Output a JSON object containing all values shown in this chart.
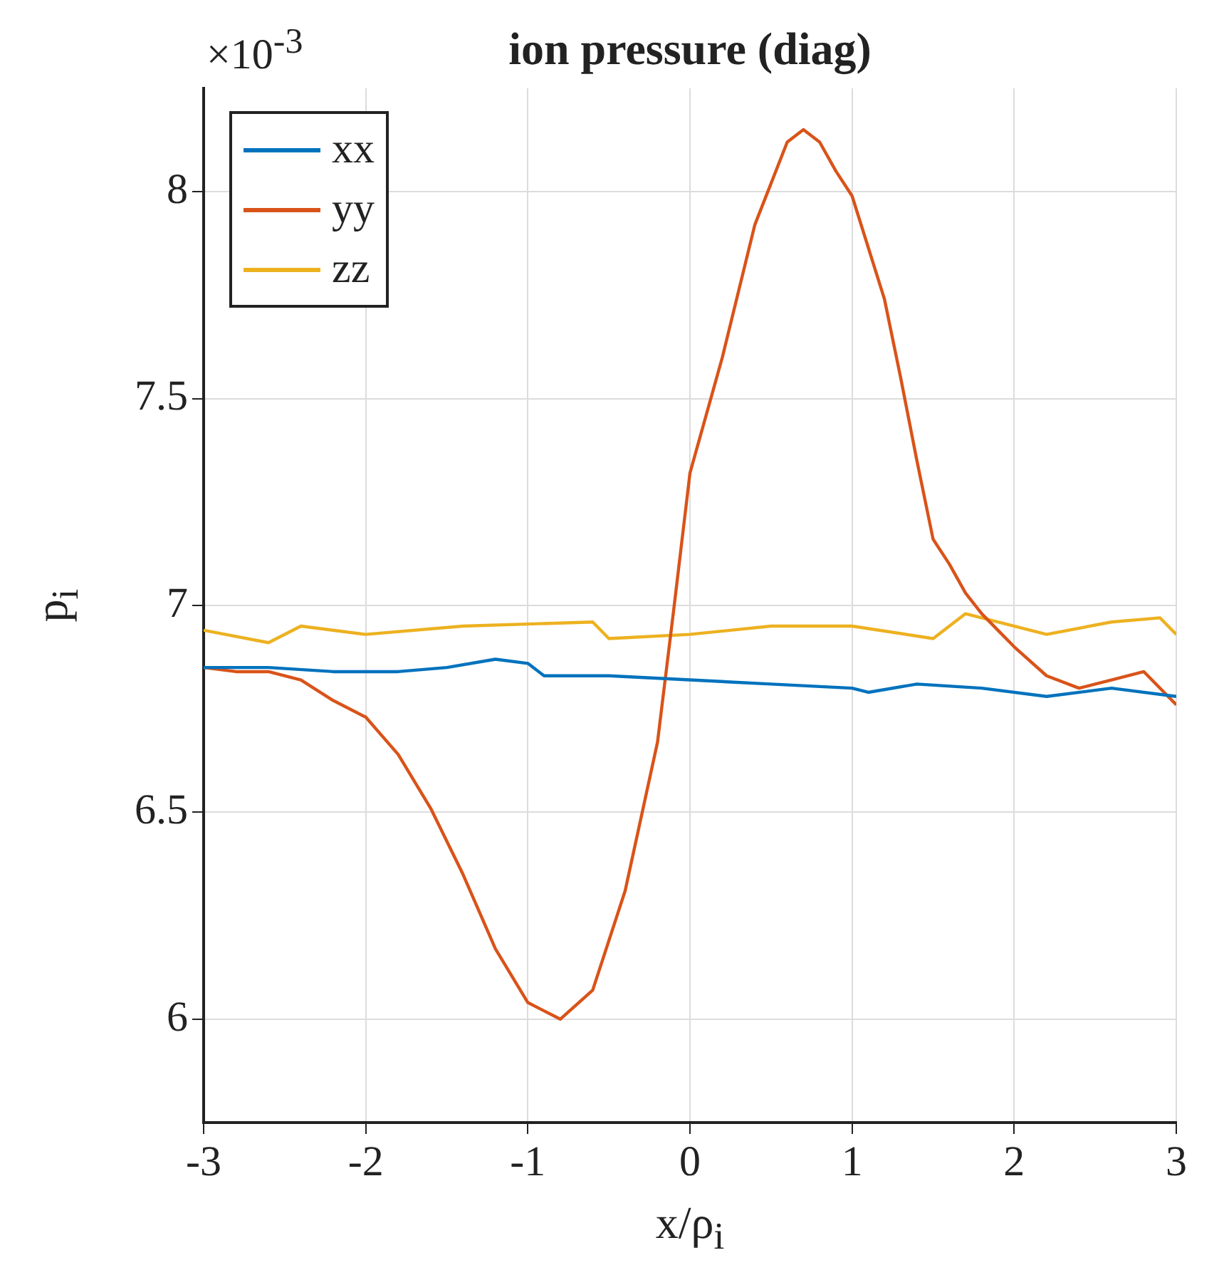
{
  "chart_data": {
    "type": "line",
    "title": "ion pressure (diag)",
    "xlabel": "x/ρ$_{i}$",
    "ylabel": "p$_{i}$",
    "annotations": [
      "×10$^{-3}$"
    ],
    "xlim": [
      -3,
      3
    ],
    "xticks": [
      -3,
      -2,
      -1,
      0,
      1,
      2,
      3
    ],
    "ylim": [
      5.75,
      8.25
    ],
    "yticks": [
      6,
      6.5,
      7,
      7.5,
      8
    ],
    "grid": true,
    "legend": "top left",
    "line_style": "solid",
    "marker": "none",
    "series": [
      {
        "name": "xx",
        "color": "#0072bd",
        "x": [
          -3,
          -2.6,
          -2.2,
          -1.8,
          -1.5,
          -1.2,
          -1,
          -0.9,
          -0.5,
          0,
          0.5,
          1,
          1.1,
          1.4,
          1.8,
          2.2,
          2.6,
          3
        ],
        "values": [
          6.85,
          6.85,
          6.84,
          6.84,
          6.85,
          6.87,
          6.86,
          6.83,
          6.83,
          6.82,
          6.81,
          6.8,
          6.79,
          6.81,
          6.8,
          6.78,
          6.8,
          6.78
        ]
      },
      {
        "name": "yy",
        "color": "#d95319",
        "x": [
          -3,
          -2.8,
          -2.6,
          -2.4,
          -2.2,
          -2,
          -1.8,
          -1.6,
          -1.4,
          -1.2,
          -1,
          -0.8,
          -0.6,
          -0.4,
          -0.2,
          -0.1,
          0,
          0.2,
          0.4,
          0.5,
          0.6,
          0.7,
          0.8,
          0.9,
          1,
          1.2,
          1.3,
          1.4,
          1.5,
          1.6,
          1.7,
          1.8,
          1.9,
          2,
          2.2,
          2.4,
          2.6,
          2.8,
          3
        ],
        "values": [
          6.85,
          6.84,
          6.84,
          6.82,
          6.77,
          6.73,
          6.64,
          6.51,
          6.35,
          6.17,
          6.04,
          6,
          6.07,
          6.31,
          6.67,
          6.99,
          7.32,
          7.6,
          7.92,
          8.02,
          8.12,
          8.15,
          8.12,
          8.05,
          7.99,
          7.74,
          7.55,
          7.35,
          7.16,
          7.1,
          7.03,
          6.98,
          6.94,
          6.9,
          6.83,
          6.8,
          6.82,
          6.84,
          6.76
        ]
      },
      {
        "name": "zz",
        "color": "#edb120",
        "x": [
          -3,
          -2.6,
          -2.4,
          -2,
          -1.4,
          -0.6,
          -0.5,
          0,
          0.5,
          1,
          1.5,
          1.7,
          2.2,
          2.6,
          2.9,
          3
        ],
        "values": [
          6.94,
          6.91,
          6.95,
          6.93,
          6.95,
          6.96,
          6.92,
          6.93,
          6.95,
          6.95,
          6.92,
          6.98,
          6.93,
          6.96,
          6.97,
          6.93
        ]
      }
    ]
  }
}
